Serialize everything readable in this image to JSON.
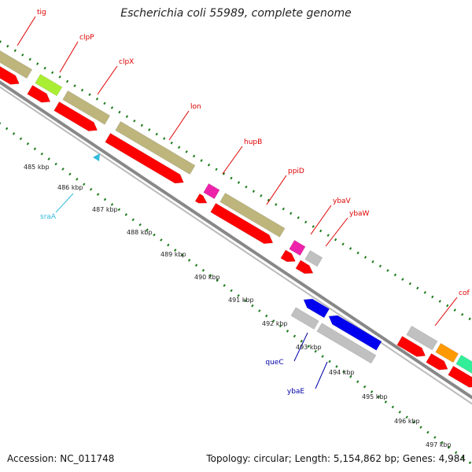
{
  "title": "Escherichia coli 55989, complete genome",
  "footer": {
    "accession": "Accession: NC_011748",
    "summary": "Topology: circular; Length: 5,154,862 bp; Genes: 4,984"
  },
  "colors": {
    "background": "#ffffff",
    "backbone": "#888888",
    "tick": "#1a7a1a",
    "forward_label": "#dd0000",
    "reverse_label": "#0000aa",
    "rna_label": "#33bbdd"
  },
  "scale": {
    "ticks": [
      "485 kbp",
      "486 kbp",
      "487 kbp",
      "488 kbp",
      "489 kbp",
      "490 kbp",
      "491 kbp",
      "492 kbp",
      "493 kbp",
      "494 kbp",
      "495 kbp",
      "496 kbp",
      "497 kbp"
    ]
  },
  "genes": [
    {
      "name": "tig",
      "label_color": "#dd0000",
      "cog_color": "#bdb57b"
    },
    {
      "name": "clpP",
      "label_color": "#dd0000",
      "cog_color": "#aaee33"
    },
    {
      "name": "clpX",
      "label_color": "#dd0000",
      "cog_color": "#bdb57b"
    },
    {
      "name": "lon",
      "label_color": "#dd0000",
      "cog_color": "#bdb57b"
    },
    {
      "name": "hupB",
      "label_color": "#dd0000",
      "cog_color": "#ee22aa"
    },
    {
      "name": "ppiD",
      "label_color": "#dd0000",
      "cog_color": "#bdb57b"
    },
    {
      "name": "ybaV",
      "label_color": "#dd0000",
      "cog_color": "#ee22aa"
    },
    {
      "name": "ybaW",
      "label_color": "#dd0000",
      "cog_color": "#c0c0c0"
    },
    {
      "name": "cof",
      "label_color": "#dd0000",
      "cog_color": "#c0c0c0"
    },
    {
      "name": "queC",
      "label_color": "#0000aa",
      "cog_color": "#c0c0c0"
    },
    {
      "name": "ybaE",
      "label_color": "#0000aa",
      "cog_color": "#c0c0c0"
    },
    {
      "name": "sraA",
      "label_color": "#33bbdd",
      "cog_color": "#33bbdd"
    }
  ]
}
